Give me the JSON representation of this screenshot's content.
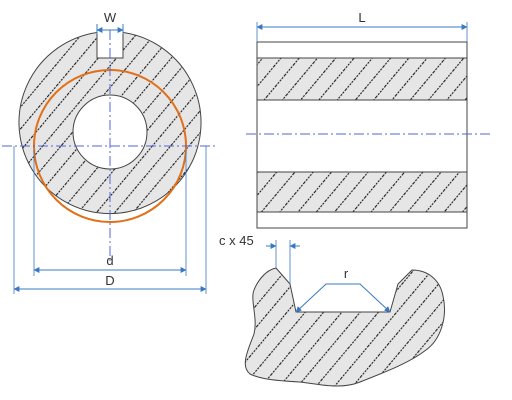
{
  "labels": {
    "width": "W",
    "length": "L",
    "inner_diameter": "d",
    "outer_diameter": "D",
    "chamfer": "c x 45",
    "radius": "r"
  },
  "colors": {
    "outline": "#444444",
    "hatch": "#1a1a1a",
    "fill": "#e6e6e6",
    "dimension": "#3a78c2",
    "centerline": "#5565d6",
    "pitch_circle": "#e0701a"
  }
}
